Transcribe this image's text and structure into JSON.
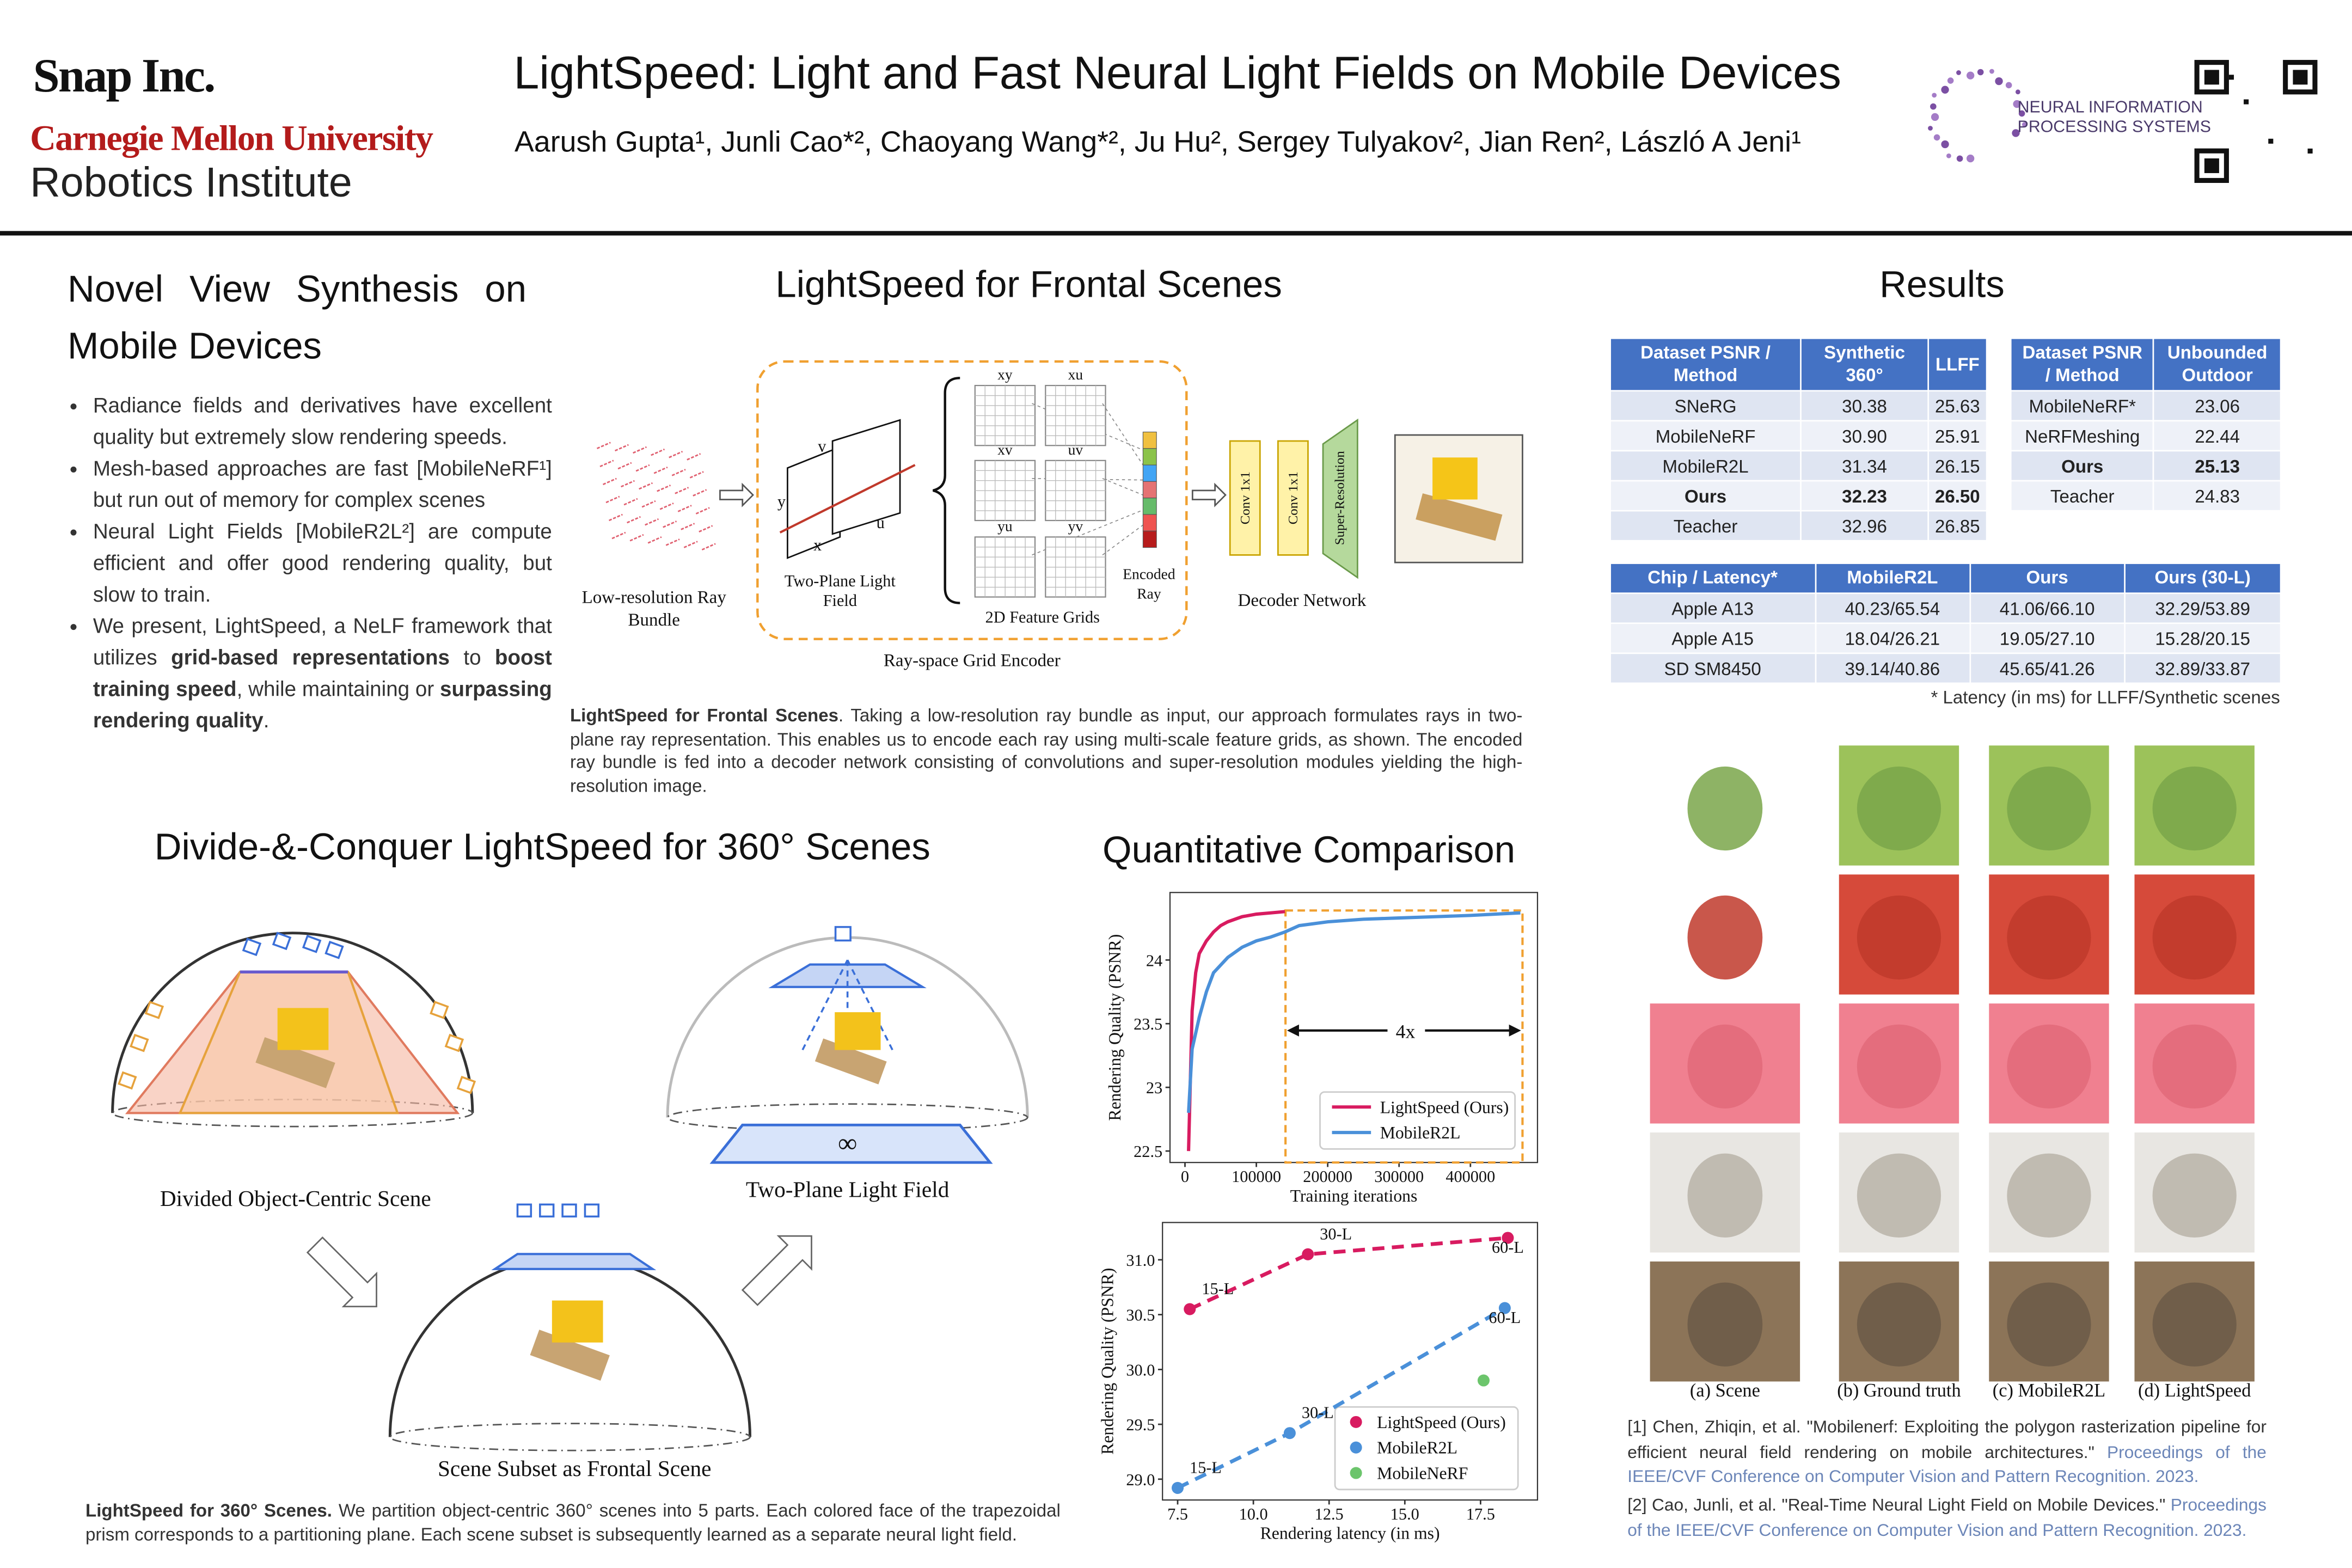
{
  "header": {
    "affiliations": [
      "Snap Inc.",
      "Carnegie Mellon University",
      "Robotics Institute"
    ],
    "title": "LightSpeed: Light and Fast Neural Light Fields on Mobile Devices",
    "authors": "Aarush Gupta¹, Junli Cao*², Chaoyang Wang*², Ju Hu², Sergey Tulyakov², Jian Ren², László A Jeni¹",
    "conference": [
      "NEURAL INFORMATION",
      "PROCESSING SYSTEMS"
    ]
  },
  "intro": {
    "title": "Novel View Synthesis on Mobile Devices",
    "bullets": [
      [
        "Radiance fields and derivatives have excellent quality but extremely slow rendering speeds."
      ],
      [
        "Mesh-based approaches are fast [MobileNeRF¹] but run out of memory for complex scenes"
      ],
      [
        "Neural Light Fields [MobileR2L²] are compute efficient and offer good rendering quality, but slow to train."
      ],
      [
        "We present, LightSpeed, a NeLF framework that utilizes ",
        "grid-based representations",
        " to ",
        "boost training speed",
        ", while maintaining or ",
        "surpassing rendering quality",
        "."
      ]
    ]
  },
  "frontal": {
    "title": "LightSpeed for Frontal Scenes",
    "figure": {
      "input": [
        "Low-resolution Ray",
        "Bundle"
      ],
      "planes": [
        "Two-Plane Light",
        "Field"
      ],
      "plane_axes": [
        "v",
        "u",
        "x",
        "y"
      ],
      "grids": [
        "xy",
        "xu",
        "xv",
        "uv",
        "yu",
        "yv"
      ],
      "grids_label": "2D Feature Grids",
      "encoded": [
        "Encoded",
        "Ray"
      ],
      "encoder": "Ray-space Grid Encoder",
      "conv": "Conv 1x1",
      "sr": "Super-Resolution",
      "decoder": "Decoder Network"
    },
    "caption": {
      "lead": "LightSpeed for Frontal Scenes",
      "text": ". Taking a low-resolution ray bundle as input, our approach formulates rays in two-plane ray representation. This enables us to encode each ray using multi-scale feature grids, as shown. The encoded ray bundle is fed into a decoder network consisting of convolutions and super-resolution modules yielding the high-resolution image."
    }
  },
  "scenes360": {
    "title": "Divide-&-Conquer LightSpeed for 360° Scenes",
    "figure": {
      "divided": "Divided Object-Centric Scene",
      "two_plane": "Two-Plane Light Field",
      "subset": "Scene Subset as Frontal Scene",
      "infinity": "∞"
    },
    "caption": {
      "lead": "LightSpeed for 360° Scenes.",
      "text": " We partition object-centric 360° scenes into 5 parts. Each colored face of the trapezoidal prism corresponds to a partitioning plane. Each scene subset is subsequently learned as a separate neural light field."
    }
  },
  "quantitative": {
    "title": "Quantitative Comparison"
  },
  "chart_data": [
    {
      "type": "line",
      "xlabel": "Training iterations",
      "ylabel": "Rendering Quality (PSNR)",
      "xlim": [
        -21000,
        494000
      ],
      "ylim": [
        22.41,
        24.53
      ],
      "xticks": [
        0,
        100000,
        200000,
        300000,
        400000
      ],
      "yticks": [
        22.5,
        23.0,
        23.5,
        24.0
      ],
      "legend": "lower right",
      "annotation": "4x",
      "series": [
        {
          "name": "LightSpeed (Ours)",
          "color": "#d81b60",
          "x": [
            5000,
            10000,
            15000,
            20000,
            30000,
            40000,
            50000,
            60000,
            80000,
            100000,
            120000,
            140000
          ],
          "values": [
            22.5,
            23.6,
            23.9,
            24.05,
            24.15,
            24.22,
            24.27,
            24.3,
            24.34,
            24.36,
            24.37,
            24.38
          ]
        },
        {
          "name": "MobileR2L",
          "color": "#4a90d9",
          "x": [
            5000,
            10000,
            20000,
            30000,
            40000,
            60000,
            80000,
            100000,
            120000,
            140000,
            160000,
            200000,
            250000,
            300000,
            350000,
            400000,
            470000
          ],
          "values": [
            22.8,
            23.3,
            23.55,
            23.75,
            23.9,
            24.02,
            24.1,
            24.15,
            24.18,
            24.22,
            24.27,
            24.3,
            24.32,
            24.33,
            24.34,
            24.35,
            24.37
          ]
        }
      ]
    },
    {
      "type": "scatter",
      "xlabel": "Rendering latency (in ms)",
      "ylabel": "Rendering Quality (PSNR)",
      "xlim": [
        7.0,
        19.38
      ],
      "ylim": [
        28.81,
        31.34
      ],
      "xticks": [
        7.5,
        {
          "value": 10,
          "label": "10.0"
        },
        12.5,
        {
          "value": 15,
          "label": "15.0"
        },
        17.5
      ],
      "yticks": [
        {
          "value": 29,
          "label": "29.0"
        },
        29.5,
        {
          "value": 30,
          "label": "30.0"
        },
        30.5,
        {
          "value": 31,
          "label": "31.0"
        }
      ],
      "legend": "lower right",
      "series": [
        {
          "name": "LightSpeed (Ours)",
          "color": "#d81b60",
          "line_style": "dashed",
          "x": [
            7.9,
            11.8,
            18.4
          ],
          "values": [
            30.55,
            31.05,
            31.2
          ],
          "point_labels": [
            "15-L",
            "30-L",
            "60-L"
          ]
        },
        {
          "name": "MobileR2L",
          "color": "#4a90d9",
          "line_style": "dashed",
          "x": [
            7.5,
            11.2,
            18.3
          ],
          "values": [
            28.92,
            29.42,
            30.56
          ],
          "point_labels": [
            "15-L",
            "30-L",
            "60-L"
          ]
        },
        {
          "name": "MobileNeRF",
          "color": "#6cc56c",
          "x": [
            17.6
          ],
          "values": [
            29.9
          ]
        }
      ]
    }
  ],
  "results": {
    "title": "Results",
    "tables": [
      {
        "header": [
          "Dataset PSNR / Method",
          "Synthetic 360°",
          "LLFF"
        ],
        "bold_row": 3,
        "rows": [
          [
            "SNeRG",
            "30.38",
            "25.63"
          ],
          [
            "MobileNeRF",
            "30.90",
            "25.91"
          ],
          [
            "MobileR2L",
            "31.34",
            "26.15"
          ],
          [
            "Ours",
            "32.23",
            "26.50"
          ],
          [
            "Teacher",
            "32.96",
            "26.85"
          ]
        ]
      },
      {
        "header": [
          "Dataset PSNR / Method",
          "Unbounded Outdoor"
        ],
        "bold_row": 2,
        "rows": [
          [
            "MobileNeRF*",
            "23.06"
          ],
          [
            "NeRFMeshing",
            "22.44"
          ],
          [
            "Ours",
            "25.13"
          ],
          [
            "Teacher",
            "24.83"
          ]
        ]
      },
      {
        "header": [
          "Chip / Latency*",
          "MobileR2L",
          "Ours",
          "Ours (30-L)"
        ],
        "rows": [
          [
            "Apple A13",
            "40.23/65.54",
            "41.06/66.10",
            "32.29/53.89"
          ],
          [
            "Apple A15",
            "18.04/26.21",
            "19.05/27.10",
            "15.28/20.15"
          ],
          [
            "SD SM8450",
            "39.14/40.86",
            "45.65/41.26",
            "32.89/33.87"
          ]
        ]
      }
    ],
    "footnote": "* Latency (in ms) for LLFF/Synthetic scenes",
    "image_captions": [
      "(a) Scene",
      "(b) Ground truth",
      "(c) MobileR2L",
      "(d) LightSpeed"
    ]
  },
  "references": [
    {
      "text": "[1] Chen, Zhiqin, et al. \"Mobilenerf: Exploiting the polygon rasterization pipeline for efficient neural field rendering on mobile architectures.\" ",
      "venue": "Proceedings of the IEEE/CVF Conference on Computer Vision and Pattern Recognition. 2023."
    },
    {
      "text": "[2] Cao, Junli, et al. \"Real-Time Neural Light Field on Mobile Devices.\" ",
      "venue": "Proceedings of the IEEE/CVF Conference on Computer Vision and Pattern Recognition. 2023."
    }
  ]
}
